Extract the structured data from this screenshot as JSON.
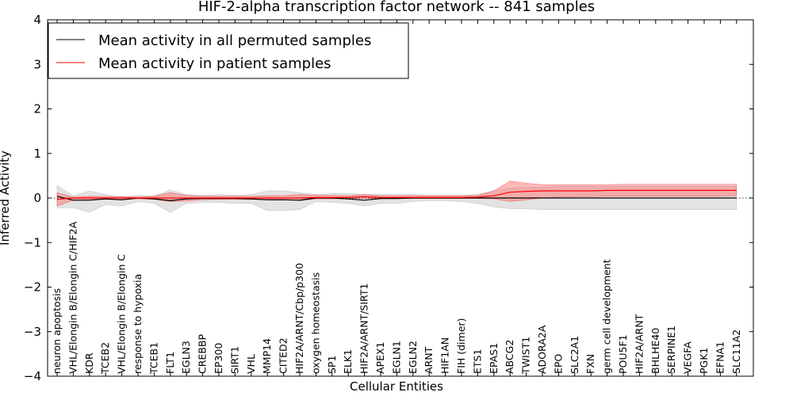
{
  "chart_data": {
    "type": "line",
    "title": "HIF-2-alpha transcription factor network -- 841 samples",
    "xlabel": "Cellular Entities",
    "ylabel": "Inferred Activity",
    "ylim": [
      -4,
      4
    ],
    "yticks": [
      -4,
      -3,
      -2,
      -1,
      0,
      1,
      2,
      3,
      4
    ],
    "ytick_labels": [
      "−4",
      "−3",
      "−2",
      "−1",
      "0",
      "1",
      "2",
      "3",
      "4"
    ],
    "grid": false,
    "legend_position": "top-left",
    "colors": {
      "permuted": "#000000",
      "patient": "#ff0000",
      "permuted_band": "#cccccc",
      "patient_band": "#ff6666"
    },
    "categories": [
      "neuron apoptosis",
      "VHL/Elongin B/Elongin C/HIF2A",
      "KDR",
      "TCEB2",
      "VHL/Elongin B/Elongin C",
      "response to hypoxia",
      "TCEB1",
      "FLT1",
      "EGLN3",
      "CREBBP",
      "EP300",
      "SIRT1",
      "VHL",
      "MMP14",
      "CITED2",
      "HIF2A/ARNT/Cbp/p300",
      "oxygen homeostasis",
      "SP1",
      "ELK1",
      "HIF2A/ARNT/SIRT1",
      "APEX1",
      "EGLN1",
      "EGLN2",
      "ARNT",
      "HIF1AN",
      "FIH (dimer)",
      "ETS1",
      "EPAS1",
      "ABCG2",
      "TWIST1",
      "ADORA2A",
      "EPO",
      "SLC2A1",
      "FXN",
      "germ cell development",
      "POU5F1",
      "HIF2A/ARNT",
      "BHLHE40",
      "SERPINE1",
      "VEGFA",
      "PGK1",
      "EFNA1",
      "SLC11A2"
    ],
    "series": [
      {
        "name": "Mean activity in all permuted samples",
        "color": "#000000",
        "values": [
          0.04,
          -0.05,
          -0.05,
          -0.02,
          -0.04,
          0.0,
          -0.02,
          -0.06,
          -0.02,
          -0.01,
          -0.01,
          -0.01,
          -0.02,
          -0.04,
          -0.04,
          -0.05,
          0.0,
          0.0,
          -0.02,
          -0.05,
          -0.01,
          -0.01,
          0.0,
          0.0,
          0.0,
          0.0,
          0.0,
          0.0,
          0.0,
          0.0,
          0.0,
          0.0,
          0.0,
          0.0,
          0.0,
          0.0,
          0.0,
          0.0,
          0.0,
          0.0,
          0.0,
          0.0,
          0.0
        ],
        "lower": [
          -0.22,
          -0.22,
          -0.32,
          -0.15,
          -0.18,
          -0.08,
          -0.12,
          -0.32,
          -0.12,
          -0.1,
          -0.1,
          -0.12,
          -0.12,
          -0.28,
          -0.28,
          -0.26,
          -0.08,
          -0.1,
          -0.12,
          -0.18,
          -0.12,
          -0.12,
          -0.08,
          -0.06,
          -0.06,
          -0.08,
          -0.12,
          -0.2,
          -0.24,
          -0.24,
          -0.26,
          -0.26,
          -0.26,
          -0.26,
          -0.26,
          -0.26,
          -0.26,
          -0.26,
          -0.26,
          -0.26,
          -0.26,
          -0.26,
          -0.26
        ],
        "upper": [
          0.28,
          0.05,
          0.16,
          0.08,
          0.02,
          0.06,
          0.04,
          0.18,
          0.08,
          0.06,
          0.08,
          0.06,
          0.08,
          0.16,
          0.16,
          0.12,
          0.08,
          0.1,
          0.1,
          0.08,
          0.08,
          0.08,
          0.08,
          0.06,
          0.06,
          0.06,
          0.08,
          0.16,
          0.22,
          0.24,
          0.24,
          0.26,
          0.26,
          0.26,
          0.26,
          0.26,
          0.26,
          0.26,
          0.26,
          0.26,
          0.26,
          0.26,
          0.26
        ]
      },
      {
        "name": "Mean activity in patient samples",
        "color": "#ff0000",
        "values": [
          -0.03,
          0.0,
          0.0,
          0.0,
          0.0,
          0.0,
          0.0,
          0.0,
          0.0,
          0.0,
          0.0,
          0.0,
          0.0,
          0.0,
          0.0,
          0.0,
          0.01,
          0.01,
          0.01,
          0.03,
          0.01,
          0.01,
          0.01,
          0.01,
          0.01,
          0.01,
          0.02,
          0.05,
          0.13,
          0.15,
          0.16,
          0.16,
          0.16,
          0.16,
          0.17,
          0.17,
          0.17,
          0.17,
          0.17,
          0.17,
          0.17,
          0.17,
          0.17
        ],
        "lower": [
          -0.18,
          -0.05,
          -0.03,
          -0.03,
          -0.03,
          -0.02,
          -0.03,
          -0.08,
          -0.07,
          -0.04,
          -0.03,
          -0.03,
          -0.03,
          -0.03,
          -0.03,
          -0.06,
          -0.02,
          -0.02,
          -0.01,
          -0.01,
          -0.01,
          -0.01,
          -0.01,
          -0.01,
          -0.01,
          -0.01,
          -0.01,
          -0.02,
          -0.08,
          -0.04,
          0.0,
          0.02,
          0.03,
          0.03,
          0.04,
          0.04,
          0.04,
          0.04,
          0.04,
          0.04,
          0.04,
          0.04,
          0.05
        ],
        "upper": [
          0.12,
          0.02,
          0.04,
          0.03,
          0.03,
          0.02,
          0.04,
          0.12,
          0.06,
          0.04,
          0.04,
          0.04,
          0.04,
          0.05,
          0.05,
          0.08,
          0.06,
          0.06,
          0.05,
          0.08,
          0.05,
          0.05,
          0.05,
          0.05,
          0.05,
          0.05,
          0.06,
          0.16,
          0.38,
          0.33,
          0.3,
          0.3,
          0.3,
          0.3,
          0.3,
          0.31,
          0.31,
          0.31,
          0.31,
          0.31,
          0.31,
          0.31,
          0.31
        ]
      }
    ]
  }
}
